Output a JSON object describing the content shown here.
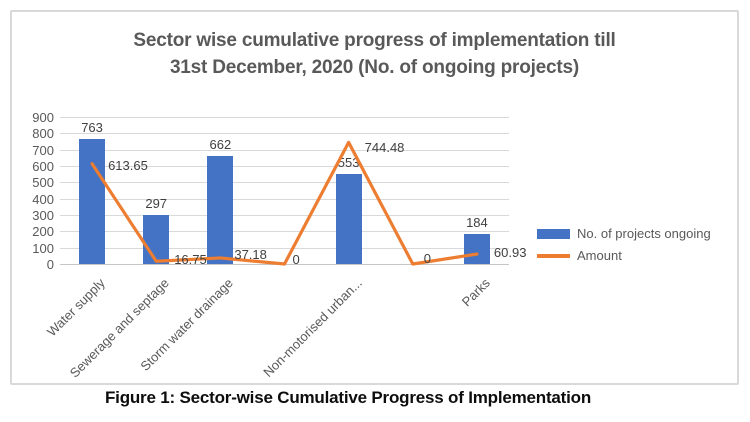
{
  "chart": {
    "title": "Sector wise cumulative progress of implementation till\n31st December, 2020  (No. of ongoing projects)",
    "caption": "Figure 1: Sector-wise Cumulative Progress of Implementation",
    "legend": [
      {
        "label": "No. of projects ongoing",
        "type": "bar",
        "color": "#4472c4"
      },
      {
        "label": "Amount",
        "type": "line",
        "color": "#ed7d31"
      }
    ]
  },
  "chart_data": {
    "type": "bar",
    "subtype": "bar-line-combo",
    "title": "Sector wise cumulative progress of implementation till 31st December, 2020  (No. of ongoing projects)",
    "categories": [
      "Water supply",
      "Sewerage and septage",
      "Storm water drainage",
      "",
      "Non-motorised urban...",
      "",
      "Parks"
    ],
    "series": [
      {
        "name": "No. of projects ongoing",
        "type": "bar",
        "color": "#4472c4",
        "values": [
          763,
          297,
          662,
          0,
          553,
          0,
          184
        ],
        "labels": [
          "763",
          "297",
          "662",
          "",
          "553",
          "",
          "184"
        ]
      },
      {
        "name": "Amount",
        "type": "line",
        "color": "#ed7d31",
        "values": [
          613.65,
          16.75,
          37.18,
          0,
          744.48,
          0,
          60.93
        ],
        "labels": [
          "613.65",
          "16.75",
          "37.18",
          "0",
          "744.48",
          "0",
          "60.93"
        ]
      }
    ],
    "y_axis": {
      "min": 0,
      "max": 900,
      "step": 100,
      "ticks": [
        0,
        100,
        200,
        300,
        400,
        500,
        600,
        700,
        800,
        900
      ]
    },
    "xlabel": "",
    "ylabel": "",
    "grid": true,
    "legend_position": "right",
    "data_labels": true
  }
}
